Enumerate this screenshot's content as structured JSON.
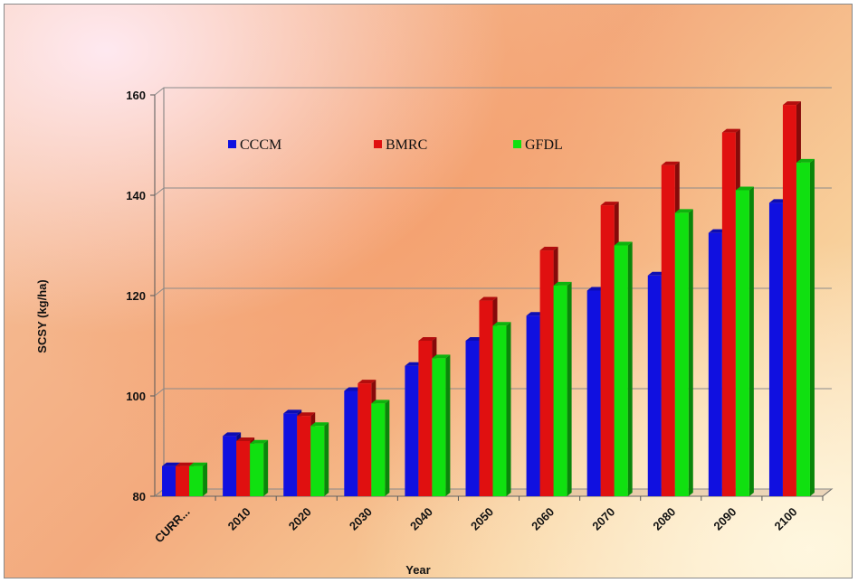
{
  "chart_data": {
    "type": "bar",
    "title": "",
    "xlabel": "Year",
    "ylabel": "SCSY (kg/ha)",
    "ylim": [
      80,
      160
    ],
    "yticks": [
      80,
      100,
      120,
      140,
      160
    ],
    "grid": "horizontal",
    "legend_position": "top-left",
    "categories": [
      "CURR...",
      "2010",
      "2020",
      "2030",
      "2040",
      "2050",
      "2060",
      "2070",
      "2080",
      "2090",
      "2100"
    ],
    "series": [
      {
        "name": "CCCM",
        "color": "#1010e0",
        "values": [
          86,
          92,
          96.5,
          101,
          106,
          111,
          116,
          121,
          124,
          132.5,
          138.5
        ]
      },
      {
        "name": "BMRC",
        "color": "#e01010",
        "values": [
          86,
          91,
          96,
          102.5,
          111,
          119,
          129,
          138,
          146,
          152.5,
          158
        ]
      },
      {
        "name": "GFDL",
        "color": "#10e010",
        "values": [
          86,
          90.5,
          94,
          98.5,
          107.5,
          114,
          122,
          130,
          136.5,
          141,
          146.5
        ]
      }
    ]
  }
}
